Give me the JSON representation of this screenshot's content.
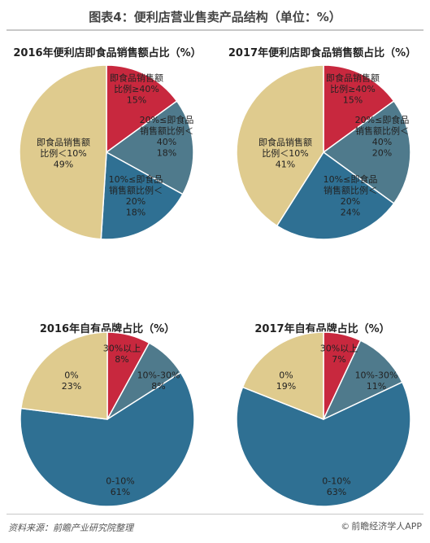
{
  "figure_title": "图表4：便利店营业售卖产品结构（单位：%）",
  "footer": {
    "source": "资料来源：前瞻产业研究院整理",
    "brand_symbol": "©",
    "brand": "前瞻经济学人APP"
  },
  "chart_data": [
    {
      "type": "pie",
      "title": "2016年便利店即食品销售额占比（%）",
      "slices": [
        {
          "label_lines": [
            "即食品销售额",
            "比例≥40%",
            "15%"
          ],
          "value": 15,
          "color": "#c8283e"
        },
        {
          "label_lines": [
            "20%≤即食品",
            "销售额比例＜",
            "40%",
            "18%"
          ],
          "value": 18,
          "color": "#4f7a8c"
        },
        {
          "label_lines": [
            "10%≤即食品",
            "销售额比例＜",
            "20%",
            "18%"
          ],
          "value": 18,
          "color": "#2f7093"
        },
        {
          "label_lines": [
            "即食品销售额",
            "比例＜10%",
            "49%"
          ],
          "value": 49,
          "color": "#dfcb8e"
        }
      ]
    },
    {
      "type": "pie",
      "title": "2017年便利店即食品销售额占比（%）",
      "slices": [
        {
          "label_lines": [
            "即食品销售额",
            "比例≥40%",
            "15%"
          ],
          "value": 15,
          "color": "#c8283e"
        },
        {
          "label_lines": [
            "20%≤即食品",
            "销售额比例＜",
            "40%",
            "20%"
          ],
          "value": 20,
          "color": "#4f7a8c"
        },
        {
          "label_lines": [
            "10%≤即食品",
            "销售额比例＜",
            "20%",
            "24%"
          ],
          "value": 24,
          "color": "#2f7093"
        },
        {
          "label_lines": [
            "即食品销售额",
            "比例＜10%",
            "41%"
          ],
          "value": 41,
          "color": "#dfcb8e"
        }
      ]
    },
    {
      "type": "pie",
      "title": "2016年自有品牌占比（%）",
      "slices": [
        {
          "label_lines": [
            "30%以上",
            "8%"
          ],
          "value": 8,
          "color": "#c8283e"
        },
        {
          "label_lines": [
            "10%-30%",
            "8%"
          ],
          "value": 8,
          "color": "#4f7a8c"
        },
        {
          "label_lines": [
            "0-10%",
            "61%"
          ],
          "value": 61,
          "color": "#2f7093"
        },
        {
          "label_lines": [
            "0%",
            "23%"
          ],
          "value": 23,
          "color": "#dfcb8e"
        }
      ]
    },
    {
      "type": "pie",
      "title": "2017年自有品牌占比（%）",
      "slices": [
        {
          "label_lines": [
            "30%以上",
            "7%"
          ],
          "value": 7,
          "color": "#c8283e"
        },
        {
          "label_lines": [
            "10%-30%",
            "11%"
          ],
          "value": 11,
          "color": "#4f7a8c"
        },
        {
          "label_lines": [
            "0-10%",
            "63%"
          ],
          "value": 63,
          "color": "#2f7093"
        },
        {
          "label_lines": [
            "0%",
            "19%"
          ],
          "value": 19,
          "color": "#dfcb8e"
        }
      ]
    }
  ]
}
